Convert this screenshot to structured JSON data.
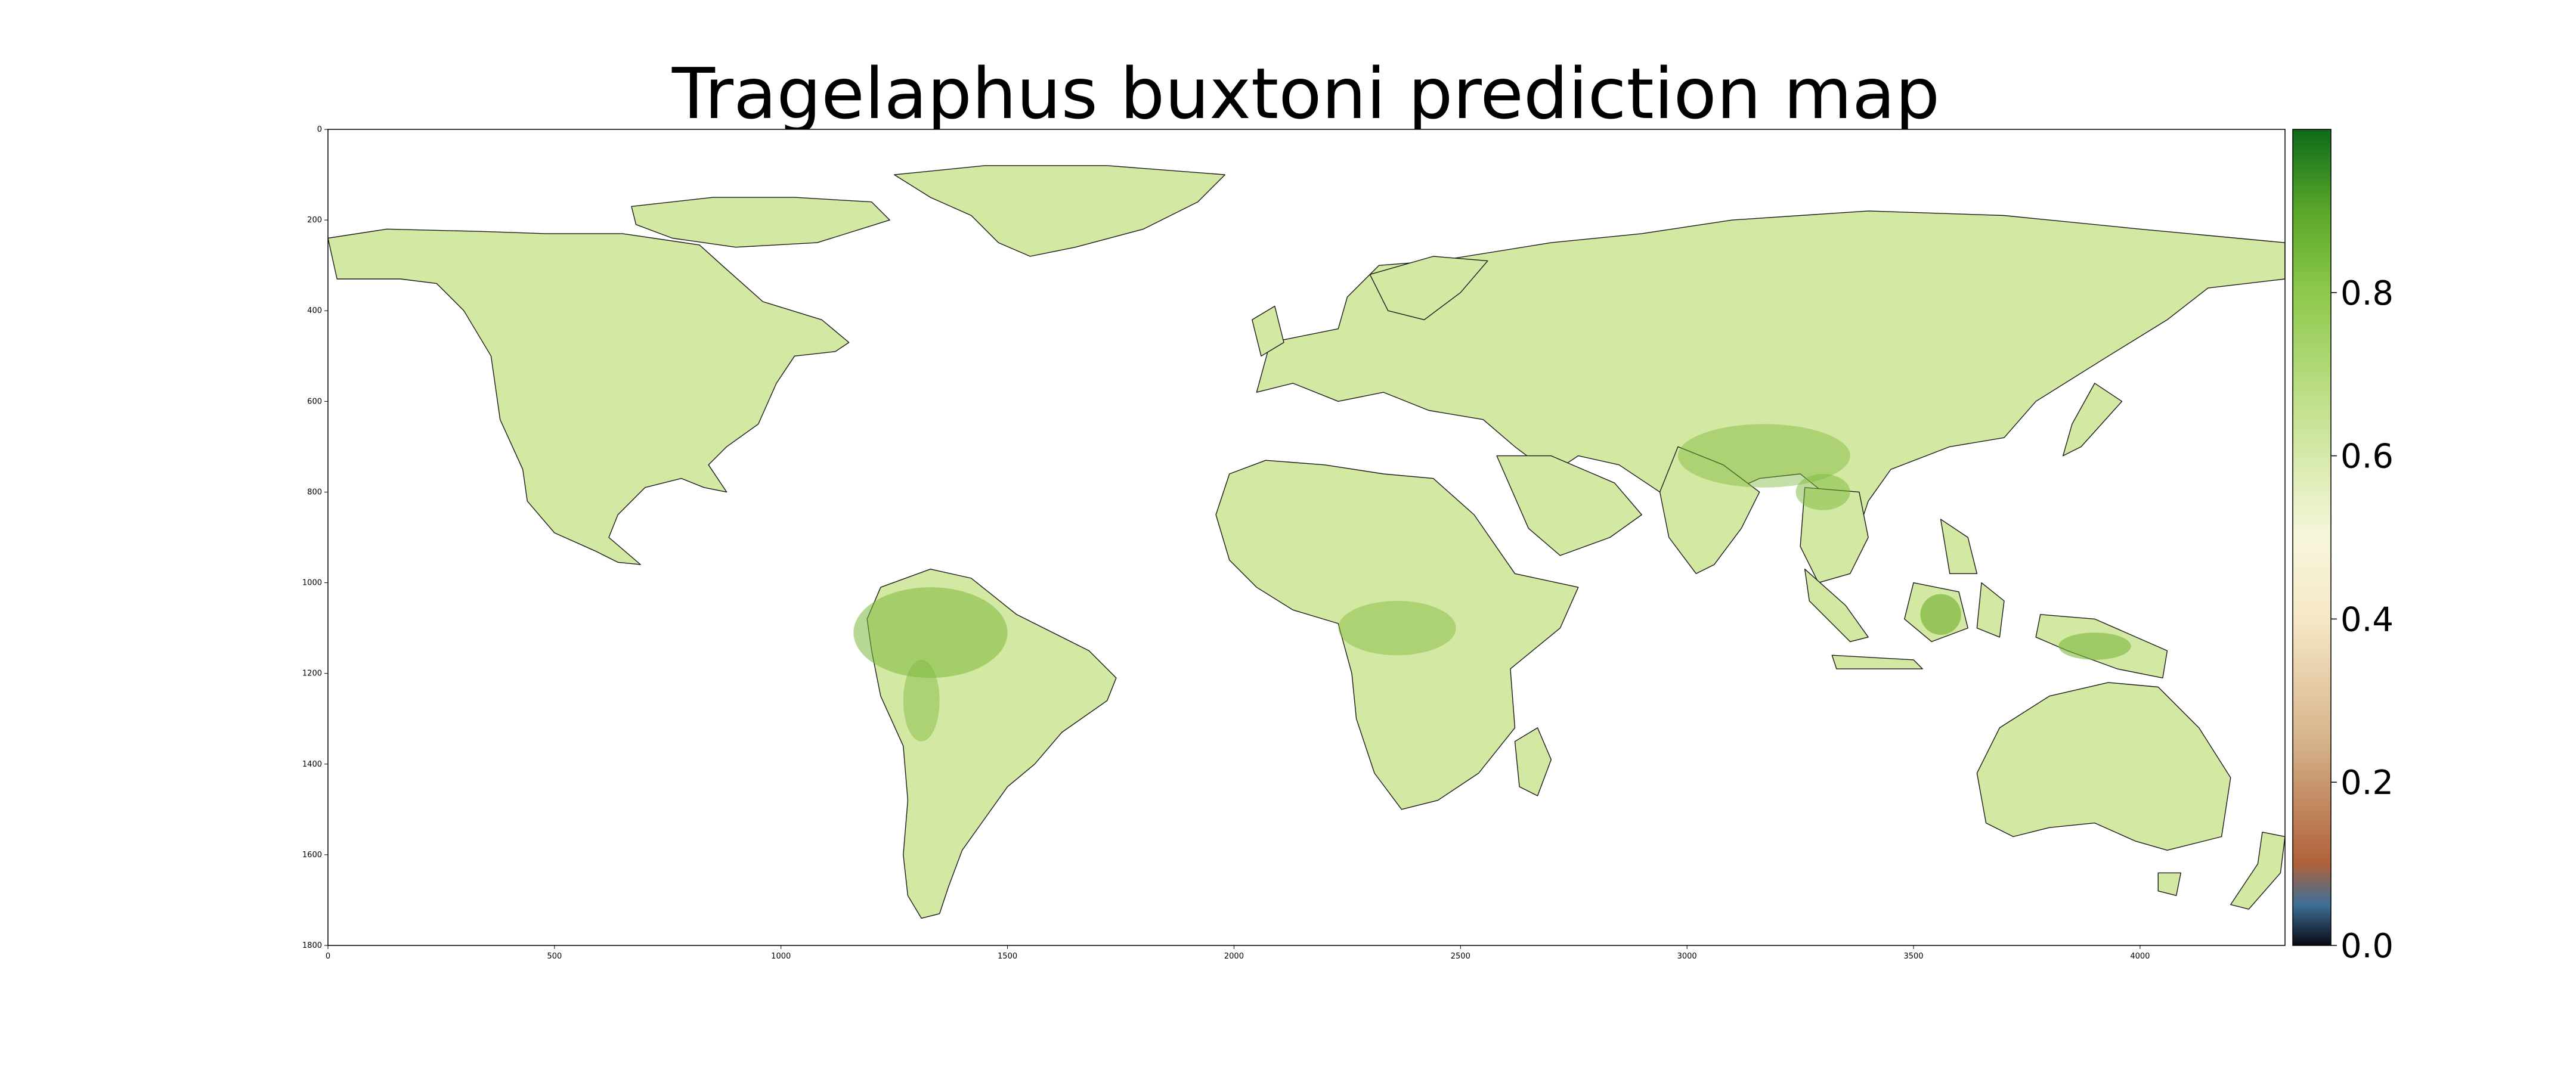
{
  "title": "Tragelaphus buxtoni prediction map",
  "map": {
    "x_axis": {
      "min": 0,
      "max": 4320,
      "ticks": [
        0,
        500,
        1000,
        1500,
        2000,
        2500,
        3000,
        3500,
        4000
      ]
    },
    "y_axis": {
      "min": 0,
      "max": 1800,
      "inverted": true,
      "ticks": [
        0,
        200,
        400,
        600,
        800,
        1000,
        1200,
        1400,
        1600,
        1800
      ]
    },
    "land_color": "#d3e8a2",
    "coast_color": "#1a1a1a",
    "ocean_color": "#ffffff",
    "hotspot_color": "#7cb83c"
  },
  "colorbar": {
    "min": 0.0,
    "max": 1.0,
    "ticks": [
      {
        "value": 0.0,
        "label": "0.0"
      },
      {
        "value": 0.2,
        "label": "0.2"
      },
      {
        "value": 0.4,
        "label": "0.4"
      },
      {
        "value": 0.6,
        "label": "0.6"
      },
      {
        "value": 0.8,
        "label": "0.8"
      }
    ],
    "stops": [
      {
        "value": 0.0,
        "color": "#0a0a14"
      },
      {
        "value": 0.05,
        "color": "#3d6f96"
      },
      {
        "value": 0.1,
        "color": "#b0613a"
      },
      {
        "value": 0.25,
        "color": "#d6b38a"
      },
      {
        "value": 0.4,
        "color": "#f6e8c6"
      },
      {
        "value": 0.5,
        "color": "#f7f6dc"
      },
      {
        "value": 0.65,
        "color": "#c6e292"
      },
      {
        "value": 0.8,
        "color": "#8ec94c"
      },
      {
        "value": 0.9,
        "color": "#5aa82a"
      },
      {
        "value": 1.0,
        "color": "#0e6a1a"
      }
    ]
  }
}
